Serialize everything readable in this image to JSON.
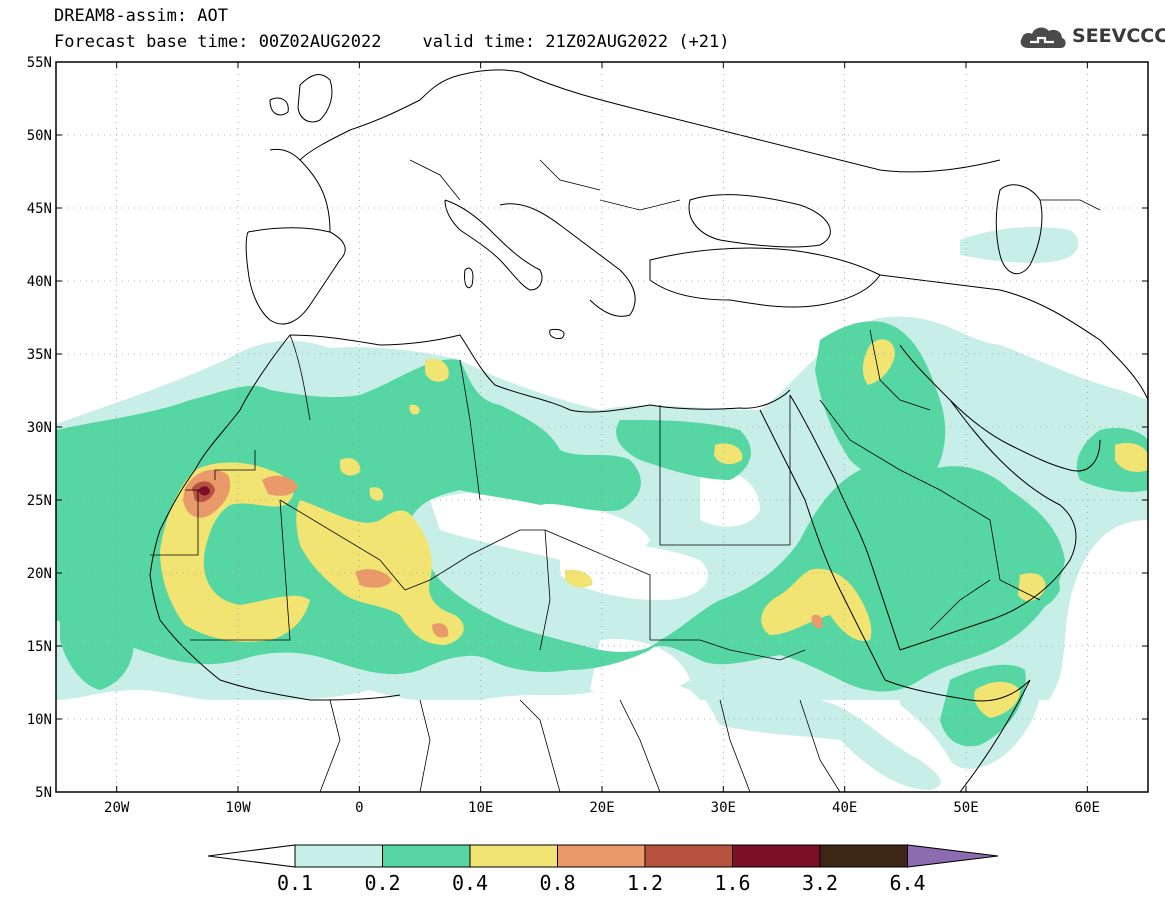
{
  "header": {
    "title": "DREAM8-assim: AOT",
    "base_time_label": "Forecast base time: 00Z02AUG2022",
    "valid_time_label": "valid time: 21Z02AUG2022 (+21)"
  },
  "logo": {
    "text": "SEEVCCC",
    "icon": "cloud-icon"
  },
  "map": {
    "lat_labels": [
      "55N",
      "50N",
      "45N",
      "40N",
      "35N",
      "30N",
      "25N",
      "20N",
      "15N",
      "10N",
      "5N"
    ],
    "lon_labels": [
      "20W",
      "10W",
      "0",
      "10E",
      "20E",
      "30E",
      "40E",
      "50E",
      "60E"
    ],
    "lon_range": [
      -25,
      65
    ],
    "lat_range": [
      5,
      55
    ],
    "grid": "dotted",
    "field": "AOT"
  },
  "colorbar": {
    "labels": [
      "0.1",
      "0.2",
      "0.4",
      "0.8",
      "1.2",
      "1.6",
      "3.2",
      "6.4"
    ],
    "colors": [
      "#c8eee8",
      "#56d6a3",
      "#f2e472",
      "#ea9a6a",
      "#b7523e",
      "#7c0f26",
      "#3d2615",
      "#8c6bb0"
    ]
  },
  "colors": {
    "level1": "#c8eee8",
    "level2": "#56d6a3",
    "level3": "#f2e472",
    "level4": "#ea9a6a",
    "level5": "#b7523e",
    "level6": "#7c0f26"
  }
}
